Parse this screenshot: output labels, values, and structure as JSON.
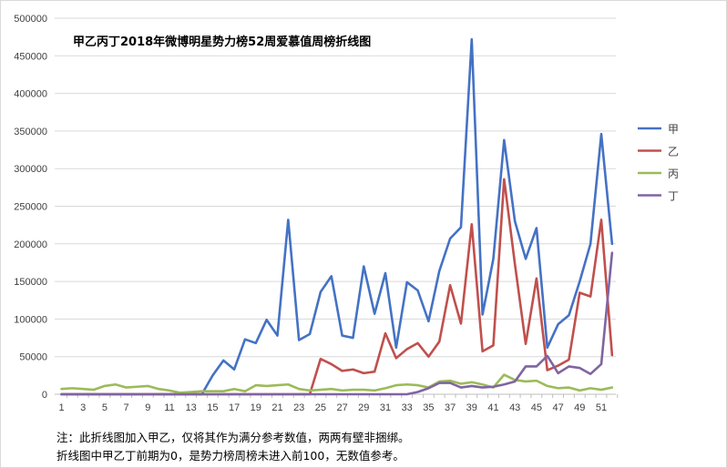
{
  "chart_data": {
    "type": "line",
    "title": "甲乙丙丁2018年微博明星势力榜52周爱慕值周榜折线图",
    "xlabel": "",
    "ylabel": "",
    "ylim": [
      0,
      500000
    ],
    "yticks": [
      0,
      50000,
      100000,
      150000,
      200000,
      250000,
      300000,
      350000,
      400000,
      450000,
      500000
    ],
    "xtick_labels": [
      "1",
      "3",
      "5",
      "7",
      "9",
      "11",
      "13",
      "15",
      "17",
      "19",
      "21",
      "23",
      "25",
      "27",
      "29",
      "31",
      "33",
      "35",
      "37",
      "39",
      "41",
      "43",
      "45",
      "47",
      "49",
      "51"
    ],
    "x": [
      1,
      2,
      3,
      4,
      5,
      6,
      7,
      8,
      9,
      10,
      11,
      12,
      13,
      14,
      15,
      16,
      17,
      18,
      19,
      20,
      21,
      22,
      23,
      24,
      25,
      26,
      27,
      28,
      29,
      30,
      31,
      32,
      33,
      34,
      35,
      36,
      37,
      38,
      39,
      40,
      41,
      42,
      43,
      44,
      45,
      46,
      47,
      48,
      49,
      50,
      51,
      52
    ],
    "grid": "horizontal",
    "legend_position": "right",
    "series": [
      {
        "name": "甲",
        "color": "#4472c4",
        "values": [
          0,
          0,
          0,
          0,
          0,
          0,
          0,
          0,
          0,
          0,
          0,
          0,
          0,
          0,
          25000,
          45000,
          33000,
          73000,
          68000,
          99000,
          78000,
          232000,
          72000,
          80000,
          136000,
          157000,
          78000,
          75000,
          170000,
          107000,
          161000,
          62000,
          149000,
          138000,
          97000,
          164000,
          207000,
          222000,
          472000,
          106000,
          180000,
          338000,
          230000,
          180000,
          221000,
          62000,
          93000,
          105000,
          150000,
          200000,
          346000,
          200000
        ]
      },
      {
        "name": "乙",
        "color": "#c0504d",
        "values": [
          0,
          0,
          0,
          0,
          0,
          0,
          0,
          0,
          0,
          0,
          0,
          0,
          0,
          0,
          0,
          0,
          0,
          0,
          0,
          0,
          0,
          0,
          0,
          0,
          47000,
          40000,
          31000,
          33000,
          28000,
          30000,
          81000,
          48000,
          60000,
          68000,
          50000,
          70000,
          145000,
          94000,
          226000,
          57000,
          65000,
          286000,
          173000,
          67000,
          154000,
          32000,
          38000,
          46000,
          135000,
          130000,
          232000,
          52000
        ]
      },
      {
        "name": "丙",
        "color": "#9bbb59",
        "values": [
          7000,
          8000,
          7000,
          6000,
          11000,
          13000,
          9000,
          10000,
          11000,
          7000,
          5000,
          2000,
          3000,
          4000,
          4000,
          4000,
          7000,
          4000,
          12000,
          11000,
          12000,
          13000,
          7000,
          5000,
          6000,
          7000,
          5000,
          6000,
          6000,
          5000,
          8000,
          12000,
          13000,
          12000,
          9000,
          17000,
          18000,
          14000,
          16000,
          13000,
          9000,
          26000,
          19000,
          17000,
          18000,
          11000,
          8000,
          9000,
          5000,
          8000,
          6000,
          9000
        ]
      },
      {
        "name": "丁",
        "color": "#8064a2",
        "values": [
          0,
          0,
          0,
          0,
          0,
          0,
          0,
          0,
          0,
          0,
          0,
          0,
          0,
          0,
          0,
          0,
          0,
          0,
          0,
          0,
          0,
          0,
          0,
          0,
          0,
          0,
          0,
          0,
          0,
          0,
          0,
          0,
          0,
          3000,
          8000,
          15000,
          15000,
          9000,
          11000,
          9000,
          10000,
          13000,
          17000,
          37000,
          37000,
          51000,
          28000,
          37000,
          35000,
          27000,
          40000,
          188000
        ]
      }
    ]
  },
  "notes": [
    "注：此折线图加入甲乙，仅将其作为满分参考数值，两两有壁非捆绑。",
    "折线图中甲乙丁前期为0，是势力榜周榜未进入前100，无数值参考。"
  ]
}
